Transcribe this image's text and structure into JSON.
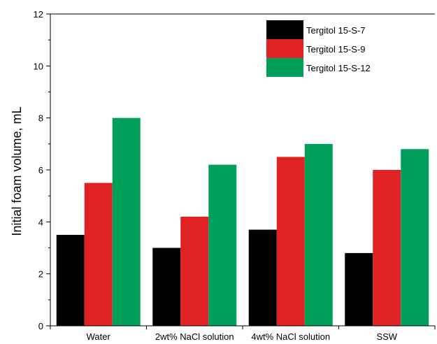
{
  "chart_data": {
    "type": "bar",
    "ylabel": "Initial foam volume, mL",
    "xlabel": "",
    "ylim": [
      0,
      12
    ],
    "yticks": [
      0,
      2,
      4,
      6,
      8,
      10,
      12
    ],
    "grid": false,
    "legend_position": "top-right",
    "categories": [
      "Water",
      "2wt% NaCl solution",
      "4wt% NaCl solution",
      "SSW"
    ],
    "series": [
      {
        "name": "Tergitol 15-S-7",
        "color": "#000000",
        "values": [
          3.5,
          3.0,
          3.7,
          2.8
        ]
      },
      {
        "name": "Tergitol 15-S-9",
        "color": "#e02224",
        "values": [
          5.5,
          4.2,
          6.5,
          6.0
        ]
      },
      {
        "name": "Tergitol 15-S-12",
        "color": "#00a05a",
        "values": [
          8.0,
          6.2,
          7.0,
          6.8
        ]
      }
    ]
  }
}
